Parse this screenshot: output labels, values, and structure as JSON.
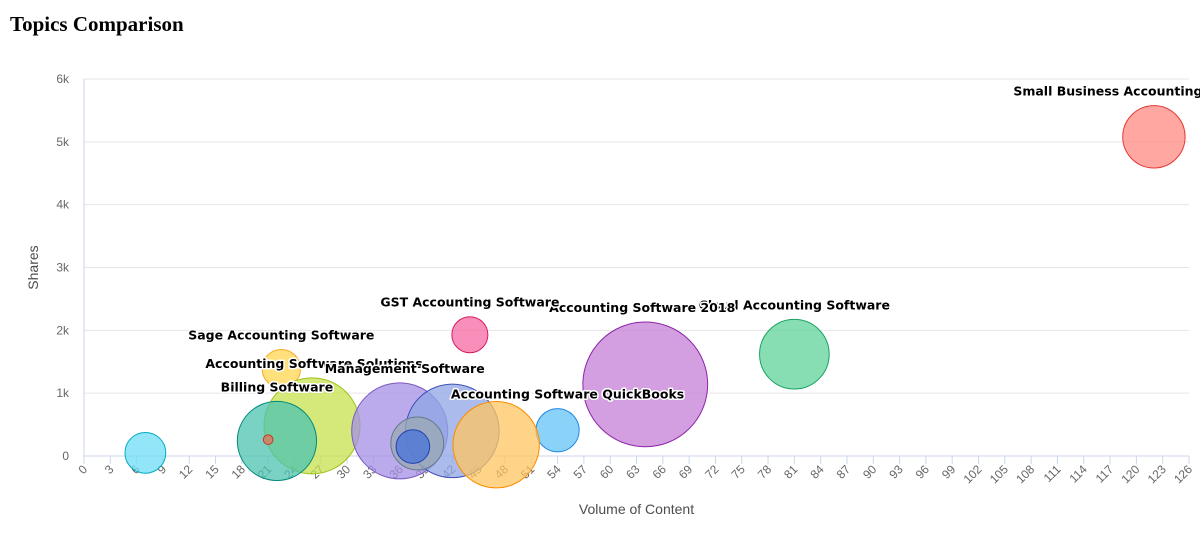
{
  "title": "Topics Comparison",
  "chart_data": {
    "type": "bubble",
    "xlabel": "Volume of Content",
    "ylabel": "Shares",
    "xlim": [
      0,
      126
    ],
    "ylim": [
      0,
      6000
    ],
    "x_ticks": [
      "0",
      "3",
      "6",
      "9",
      "12",
      "15",
      "18",
      "21",
      "24",
      "27",
      "30",
      "33",
      "36",
      "39",
      "42",
      "45",
      "48",
      "51",
      "54",
      "57",
      "60",
      "63",
      "66",
      "69",
      "72",
      "75",
      "78",
      "81",
      "84",
      "87",
      "90",
      "93",
      "96",
      "99",
      "102",
      "105",
      "108",
      "111",
      "114",
      "117",
      "120",
      "123",
      "126"
    ],
    "y_ticks": [
      "0",
      "1k",
      "2k",
      "3k",
      "4k",
      "5k",
      "6k"
    ],
    "grid": "horizontal",
    "series": [
      {
        "name": "Small Business Accounting Software",
        "x": 122,
        "y": 5080,
        "size": 2.6,
        "color": "#ff8a80",
        "stroke": "#e53935",
        "label": "Small Business Accounting Software",
        "label_side": "up",
        "label_anchor": "middle",
        "label_dx": -12
      },
      {
        "name": "Cloud Accounting Software",
        "x": 81,
        "y": 1620,
        "size": 2.9,
        "color": "#5fd39a",
        "stroke": "#1aa260",
        "label": "Cloud Accounting Software",
        "label_side": "up",
        "label_anchor": "middle",
        "label_dx": 0
      },
      {
        "name": "Accounting Software 2018",
        "x": 64,
        "y": 1140,
        "size": 5.2,
        "color": "#c47fd6",
        "stroke": "#8e24aa",
        "label": "Accounting Software 2018",
        "label_side": "up",
        "label_anchor": "end",
        "label_dx": 90
      },
      {
        "name": "GST Accounting Software",
        "x": 44,
        "y": 1930,
        "size": 1.5,
        "color": "#f56aa3",
        "stroke": "#d81b60",
        "label": "GST Accounting Software",
        "label_side": "up",
        "label_anchor": "middle",
        "label_dx": 0
      },
      {
        "name": "Accounting Software QuickBooks",
        "x": 54,
        "y": 410,
        "size": 1.8,
        "color": "#64c3f5",
        "stroke": "#1e88e5",
        "label": "Accounting Software QuickBooks",
        "label_side": "up",
        "label_anchor": "middle",
        "label_dx": 10
      },
      {
        "name": "Sage Accounting Software",
        "x": 22.5,
        "y": 1390,
        "size": 1.6,
        "color": "#ffd54f",
        "stroke": "#f9a825",
        "label": "Sage Accounting Software",
        "label_side": "up",
        "label_anchor": "middle",
        "label_dx": 0
      },
      {
        "name": "Accounting Software Solutions",
        "x": 26,
        "y": 480,
        "size": 4.0,
        "color": "#c6e24e",
        "stroke": "#9cc31a",
        "label": "Accounting Software Solutions",
        "label_side": "up",
        "label_anchor": "middle",
        "label_dx": 2
      },
      {
        "name": "Billing Software",
        "x": 22,
        "y": 240,
        "size": 3.3,
        "color": "#4ec3b1",
        "stroke": "#00897b",
        "label": "Billing Software",
        "label_side": "up",
        "label_anchor": "middle",
        "label_dx": 0
      },
      {
        "name": "Management Software",
        "x": 36,
        "y": 400,
        "size": 4.0,
        "color": "#a48fe6",
        "stroke": "#7e57c2",
        "label": "Management Software",
        "label_side": "up",
        "label_anchor": "middle",
        "label_dx": 5
      },
      {
        "name": "",
        "x": 42,
        "y": 400,
        "size": 3.9,
        "color": "#8fa5e6",
        "stroke": "#3f51b5",
        "label": "",
        "label_side": "up",
        "label_anchor": "middle",
        "label_dx": 0
      },
      {
        "name": "",
        "x": 47,
        "y": 180,
        "size": 3.6,
        "color": "#ffc561",
        "stroke": "#fb8c00",
        "label": "",
        "label_side": "up",
        "label_anchor": "middle",
        "label_dx": 0
      },
      {
        "name": "",
        "x": 38,
        "y": 200,
        "size": 2.2,
        "color": "#9aa8b3",
        "stroke": "#607d8b",
        "label": "",
        "label_side": "up",
        "label_anchor": "middle",
        "label_dx": 0
      },
      {
        "name": "",
        "x": 37.5,
        "y": 150,
        "size": 1.4,
        "color": "#4a73d9",
        "stroke": "#1e40af",
        "label": "",
        "label_side": "up",
        "label_anchor": "middle",
        "label_dx": 0
      },
      {
        "name": "",
        "x": 7,
        "y": 50,
        "size": 1.7,
        "color": "#6fdcf5",
        "stroke": "#00acc1",
        "label": "",
        "label_side": "up",
        "label_anchor": "middle",
        "label_dx": 0
      },
      {
        "name": "",
        "x": 21,
        "y": 260,
        "size": 0.4,
        "color": "#e57357",
        "stroke": "#c0392b",
        "label": "",
        "label_side": "up",
        "label_anchor": "middle",
        "label_dx": 0
      }
    ]
  }
}
